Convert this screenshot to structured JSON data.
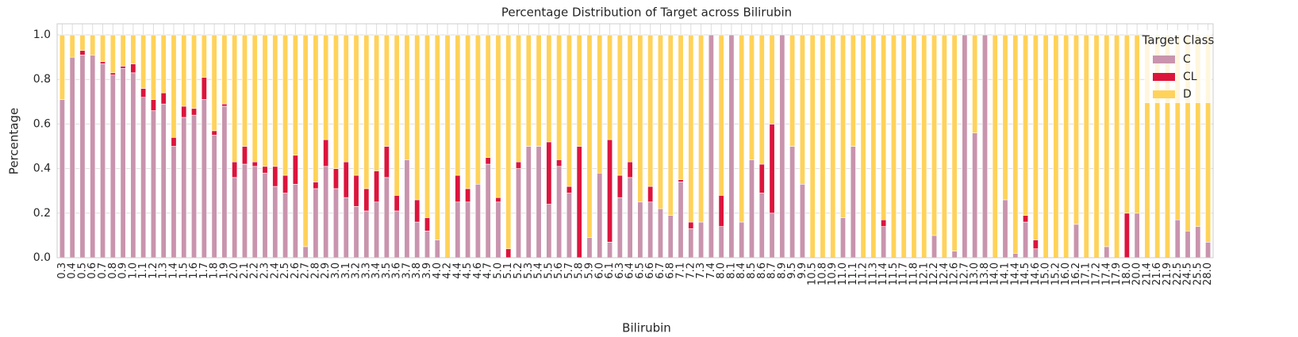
{
  "chart_data": {
    "type": "stacked_bar",
    "title": "Percentage Distribution of Target across Bilirubin",
    "x_label": "Bilirubin",
    "y_label": "Percentage",
    "legend_title": "Target Class",
    "legend_position": "upper right",
    "grid": true,
    "categories": [
      "0.3",
      "0.4",
      "0.5",
      "0.6",
      "0.7",
      "0.8",
      "0.9",
      "1.0",
      "1.1",
      "1.2",
      "1.3",
      "1.4",
      "1.5",
      "1.6",
      "1.7",
      "1.8",
      "1.9",
      "2.0",
      "2.1",
      "2.2",
      "2.3",
      "2.4",
      "2.5",
      "2.6",
      "2.7",
      "2.8",
      "2.9",
      "3.0",
      "3.1",
      "3.2",
      "3.3",
      "3.4",
      "3.5",
      "3.6",
      "3.7",
      "3.8",
      "3.9",
      "4.0",
      "4.2",
      "4.4",
      "4.5",
      "4.6",
      "4.7",
      "5.0",
      "5.1",
      "5.2",
      "5.3",
      "5.4",
      "5.5",
      "5.6",
      "5.7",
      "5.8",
      "5.9",
      "6.0",
      "6.1",
      "6.3",
      "6.4",
      "6.5",
      "6.6",
      "6.7",
      "6.8",
      "7.1",
      "7.2",
      "7.3",
      "7.4",
      "8.0",
      "8.1",
      "8.4",
      "8.5",
      "8.6",
      "8.7",
      "8.9",
      "9.5",
      "9.9",
      "10.5",
      "10.8",
      "10.9",
      "11.0",
      "11.1",
      "11.2",
      "11.3",
      "11.4",
      "11.5",
      "11.7",
      "11.8",
      "12.1",
      "12.2",
      "12.4",
      "12.6",
      "12.7",
      "13.0",
      "13.8",
      "14.0",
      "14.1",
      "14.4",
      "14.5",
      "14.6",
      "15.0",
      "15.2",
      "16.0",
      "16.2",
      "17.1",
      "17.2",
      "17.4",
      "17.9",
      "18.0",
      "20.0",
      "21.4",
      "21.6",
      "21.9",
      "22.5",
      "24.5",
      "25.5",
      "28.0"
    ],
    "series": [
      {
        "name": "C",
        "color": "#c994ad",
        "values": [
          0.71,
          0.9,
          0.91,
          0.91,
          0.87,
          0.82,
          0.85,
          0.83,
          0.72,
          0.66,
          0.69,
          0.5,
          0.63,
          0.64,
          0.71,
          0.55,
          0.68,
          0.36,
          0.42,
          0.41,
          0.38,
          0.32,
          0.29,
          0.33,
          0.05,
          0.31,
          0.41,
          0.31,
          0.27,
          0.23,
          0.21,
          0.25,
          0.36,
          0.21,
          0.44,
          0.16,
          0.12,
          0.08,
          0,
          0.25,
          0.25,
          0.33,
          0.42,
          0.25,
          0,
          0.4,
          0.5,
          0.5,
          0.24,
          0.41,
          0.29,
          0,
          0.09,
          0.38,
          0.07,
          0.27,
          0.36,
          0.25,
          0.25,
          0.22,
          0.19,
          0.34,
          0.13,
          0.16,
          1,
          0.14,
          1,
          0.16,
          0.44,
          0.29,
          0.2,
          1,
          0.5,
          0.33,
          0,
          0,
          0,
          0.18,
          0.5,
          0,
          0,
          0.14,
          0,
          0,
          0,
          0,
          0.1,
          0,
          0.03,
          1,
          0.56,
          1,
          0,
          0.26,
          0.02,
          0.16,
          0.04,
          0,
          0,
          0,
          0.15,
          0,
          0,
          0.05,
          0,
          0,
          0.2,
          0,
          0,
          0,
          0.17,
          0.12,
          0.14,
          0.07
        ]
      },
      {
        "name": "CL",
        "color": "#dc143c",
        "values": [
          0,
          0,
          0.02,
          0,
          0.01,
          0.01,
          0.01,
          0.04,
          0.04,
          0.05,
          0.05,
          0.04,
          0.05,
          0.03,
          0.1,
          0.02,
          0.01,
          0.07,
          0.08,
          0.02,
          0.03,
          0.09,
          0.08,
          0.13,
          0,
          0.03,
          0.12,
          0.09,
          0.16,
          0.14,
          0.1,
          0.14,
          0.14,
          0.07,
          0,
          0.1,
          0.06,
          0,
          0,
          0.12,
          0.06,
          0,
          0.03,
          0.02,
          0.04,
          0.03,
          0,
          0,
          0.28,
          0.03,
          0.03,
          0.5,
          0,
          0,
          0.46,
          0.1,
          0.07,
          0,
          0.07,
          0,
          0,
          0.01,
          0.03,
          0,
          0,
          0.14,
          0,
          0,
          0,
          0.13,
          0.4,
          0,
          0,
          0,
          0,
          0,
          0,
          0,
          0,
          0,
          0,
          0.03,
          0,
          0,
          0,
          0,
          0,
          0,
          0,
          0,
          0,
          0,
          0,
          0,
          0,
          0.03,
          0.04,
          0,
          0,
          0,
          0,
          0,
          0,
          0,
          0,
          0.2,
          0,
          0,
          0,
          0,
          0,
          0,
          0,
          0
        ]
      },
      {
        "name": "D",
        "color": "#ffd25a",
        "values": [
          0.29,
          0.1,
          0.07,
          0.09,
          0.12,
          0.17,
          0.14,
          0.13,
          0.24,
          0.29,
          0.26,
          0.46,
          0.32,
          0.33,
          0.19,
          0.43,
          0.31,
          0.57,
          0.5,
          0.57,
          0.59,
          0.59,
          0.63,
          0.54,
          0.95,
          0.66,
          0.47,
          0.6,
          0.57,
          0.63,
          0.69,
          0.61,
          0.5,
          0.72,
          0.56,
          0.74,
          0.82,
          0.92,
          1,
          0.63,
          0.69,
          0.67,
          0.55,
          0.73,
          0.96,
          0.57,
          0.5,
          0.5,
          0.48,
          0.56,
          0.68,
          0.5,
          0.91,
          0.62,
          0.47,
          0.63,
          0.57,
          0.75,
          0.68,
          0.78,
          0.81,
          0.65,
          0.84,
          0.84,
          0,
          0.72,
          0,
          0.84,
          0.56,
          0.58,
          0.4,
          0,
          0.5,
          0.67,
          1,
          1,
          1,
          0.82,
          0.5,
          1,
          1,
          0.83,
          1,
          1,
          1,
          1,
          0.9,
          1,
          0.97,
          0,
          0.44,
          0,
          1,
          0.74,
          0.98,
          0.81,
          0.92,
          1,
          1,
          1,
          0.85,
          1,
          1,
          0.95,
          1,
          0.8,
          0.8,
          1,
          1,
          1,
          0.83,
          0.88,
          0.86,
          0.93
        ]
      }
    ],
    "ylim": [
      0,
      1.05
    ],
    "yticks": [
      {
        "value": 0,
        "label": "0.0"
      },
      0.2,
      0.4,
      0.6,
      0.8,
      {
        "value": 1,
        "label": "1.0"
      }
    ]
  }
}
